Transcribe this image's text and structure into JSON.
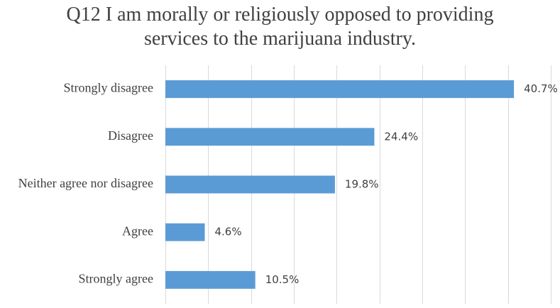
{
  "chart_data": {
    "type": "bar",
    "orientation": "horizontal",
    "title_lines": [
      "Q12 I am morally or religiously opposed to providing",
      "services to the marijuana industry."
    ],
    "categories": [
      "Strongly disagree",
      "Disagree",
      "Neither agree nor disagree",
      "Agree",
      "Strongly agree"
    ],
    "values": [
      40.7,
      24.4,
      19.8,
      4.6,
      10.5
    ],
    "value_labels": [
      "40.7%",
      "24.4%",
      "19.8%",
      "4.6%",
      "10.5%"
    ],
    "xlim": [
      0,
      45
    ],
    "grid": true,
    "bar_color": "#5b9bd5",
    "legend": "none"
  }
}
